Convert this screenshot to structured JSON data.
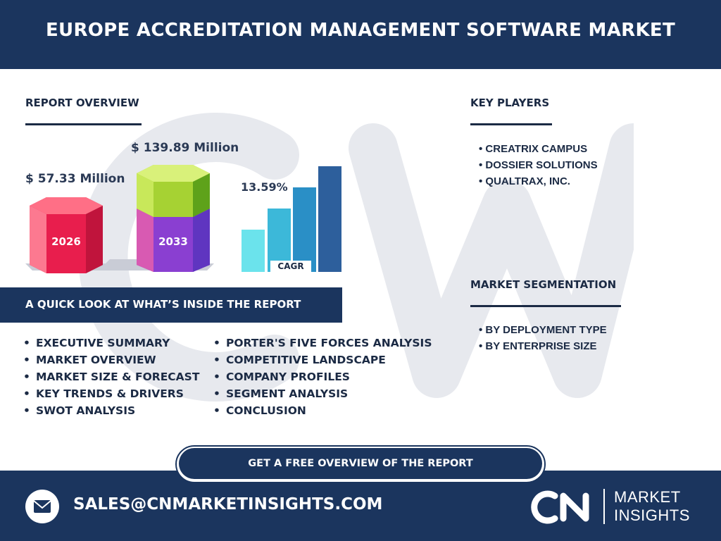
{
  "header": {
    "title": "EUROPE ACCREDITATION MANAGEMENT SOFTWARE MARKET"
  },
  "report_overview": {
    "title": "REPORT OVERVIEW",
    "value_2026": "$ 57.33 Million",
    "value_2033": "$ 139.89 Million",
    "year_2026": "2026",
    "year_2033": "2033",
    "cagr_value": "13.59%",
    "cagr_label": "CAGR"
  },
  "key_players": {
    "title": "KEY PLAYERS",
    "items": [
      "• CREATRIX CAMPUS",
      "• DOSSIER SOLUTIONS",
      "• QUALTRAX, INC."
    ]
  },
  "market_segmentation": {
    "title": "MARKET SEGMENTATION",
    "items": [
      "• BY DEPLOYMENT TYPE",
      "• BY ENTERPRISE SIZE"
    ]
  },
  "quick_look": {
    "title": "A QUICK LOOK AT WHAT’S INSIDE THE REPORT",
    "left_items": [
      "EXECUTIVE SUMMARY",
      "MARKET OVERVIEW",
      "MARKET SIZE & FORECAST",
      "KEY TRENDS & DRIVERS",
      "SWOT ANALYSIS"
    ],
    "right_items": [
      "PORTER'S FIVE FORCES ANALYSIS",
      "COMPETITIVE LANDSCAPE",
      "COMPANY PROFILES",
      "SEGMENT ANALYSIS",
      "CONCLUSION"
    ]
  },
  "cta": {
    "label": "GET A FREE OVERVIEW OF THE REPORT"
  },
  "footer": {
    "email": "SALES@CNMARKETINSIGHTS.COM",
    "email_icon": "mail-icon",
    "logo_mark": "CN",
    "logo_line1": "MARKET",
    "logo_line2": "INSIGHTS"
  },
  "colors": {
    "navy": "#1b355e",
    "hex_2026": "#f0345e",
    "hex_2033_top": "#9fd136",
    "hex_2033_bottom": "#8a3fd1",
    "cagr_bars": [
      "#6be3ec",
      "#3cb8d9",
      "#2a8fc6",
      "#2d5f9c"
    ]
  }
}
